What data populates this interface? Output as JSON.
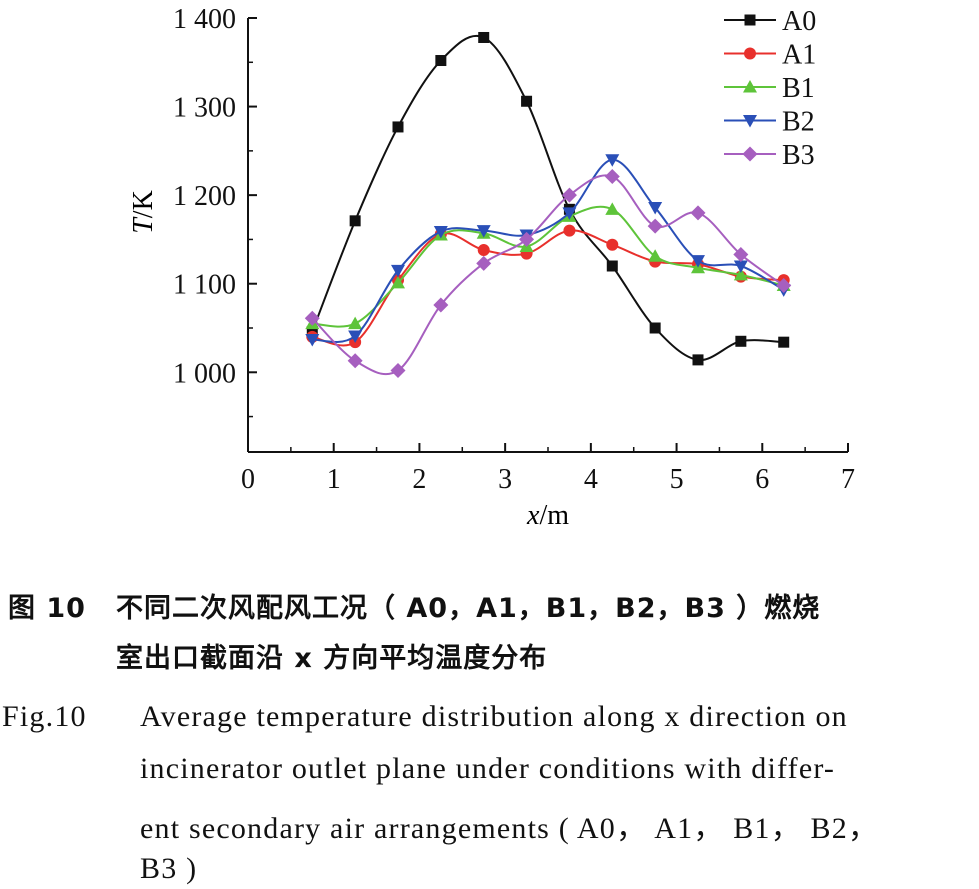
{
  "chart_data": {
    "type": "line",
    "xlabel_var": "x",
    "xlabel_unit": "/m",
    "ylabel_var": "T",
    "ylabel_unit": "/K",
    "xlim": [
      0,
      7
    ],
    "ylim": [
      910,
      1400
    ],
    "xticks": [
      "0",
      "1",
      "2",
      "3",
      "4",
      "5",
      "6",
      "7"
    ],
    "yticks": [
      {
        "value": 1000,
        "label": "1 000"
      },
      {
        "value": 1100,
        "label": "1 100"
      },
      {
        "value": 1200,
        "label": "1 200"
      },
      {
        "value": 1300,
        "label": "1 300"
      },
      {
        "value": 1400,
        "label": "1 400"
      }
    ],
    "grid": false,
    "legend_position": "top-right",
    "x": [
      0.75,
      1.25,
      1.75,
      2.25,
      2.75,
      3.25,
      3.75,
      4.25,
      4.75,
      5.25,
      5.75,
      6.25
    ],
    "series": [
      {
        "name": "A0",
        "color": "#111111",
        "marker": "square",
        "values": [
          1046,
          1171,
          1277,
          1352,
          1378,
          1306,
          1184,
          1120,
          1050,
          1014,
          1035,
          1034
        ]
      },
      {
        "name": "A1",
        "color": "#e8302c",
        "marker": "circle",
        "values": [
          1040,
          1034,
          1104,
          1156,
          1138,
          1134,
          1160,
          1144,
          1125,
          1122,
          1108,
          1104
        ]
      },
      {
        "name": "B1",
        "color": "#5ec43a",
        "marker": "triangle-up",
        "values": [
          1055,
          1055,
          1101,
          1155,
          1157,
          1142,
          1176,
          1184,
          1131,
          1118,
          1110,
          1098
        ]
      },
      {
        "name": "B2",
        "color": "#2a4fb7",
        "marker": "triangle-down",
        "values": [
          1037,
          1041,
          1115,
          1159,
          1160,
          1155,
          1180,
          1240,
          1186,
          1126,
          1120,
          1093
        ]
      },
      {
        "name": "B3",
        "color": "#a65fbf",
        "marker": "diamond",
        "values": [
          1061,
          1013,
          1002,
          1076,
          1123,
          1150,
          1200,
          1221,
          1165,
          1180,
          1133,
          1098
        ]
      }
    ]
  },
  "caption": {
    "cn_label": "图 10",
    "cn_line1": "不同二次风配风工况（ A0，A1，B1，B2，B3 ）燃烧",
    "cn_line2": "室出口截面沿 x 方向平均温度分布",
    "en_label": "Fig.10",
    "en_line1": "Average temperature distribution along x direction on",
    "en_line2": "incinerator outlet plane under conditions with differ-",
    "en_line3": "ent secondary air arrangements ( A0， A1， B1， B2，",
    "en_line4": "B3 )"
  }
}
